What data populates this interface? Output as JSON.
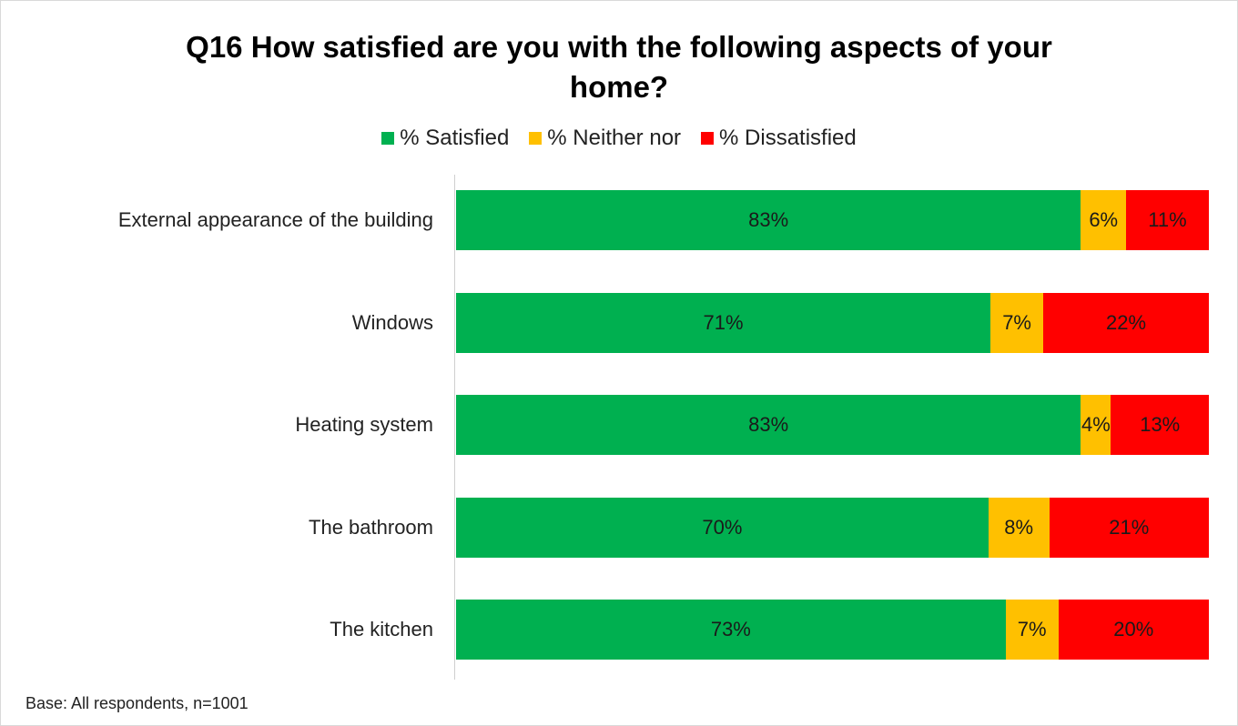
{
  "chart_data": {
    "type": "bar",
    "orientation": "horizontal-stacked-100",
    "title": "Q16 How satisfied are you with the following aspects of your home?",
    "title_lines": [
      "Q16 How satisfied are you with the following aspects of your",
      "home?"
    ],
    "categories": [
      "External appearance of the building",
      "Windows",
      "Heating system",
      "The bathroom",
      "The kitchen"
    ],
    "series": [
      {
        "name": "% Satisfied",
        "color": "#00b050",
        "values": [
          83,
          71,
          83,
          70,
          73
        ],
        "labels": [
          "83%",
          "71%",
          "83%",
          "70%",
          "73%"
        ]
      },
      {
        "name": "% Neither nor",
        "color": "#ffc000",
        "values": [
          6,
          7,
          4,
          8,
          7
        ],
        "labels": [
          "6%",
          "7%",
          "4%",
          "8%",
          "7%"
        ]
      },
      {
        "name": "% Dissatisfied",
        "color": "#ff0000",
        "values": [
          11,
          22,
          13,
          21,
          20
        ],
        "labels": [
          "11%",
          "22%",
          "13%",
          "21%",
          "20%"
        ]
      }
    ],
    "legend_position": "top",
    "xlim": [
      0,
      100
    ],
    "grid": false
  },
  "footnote": "Base: All respondents, n=1001"
}
